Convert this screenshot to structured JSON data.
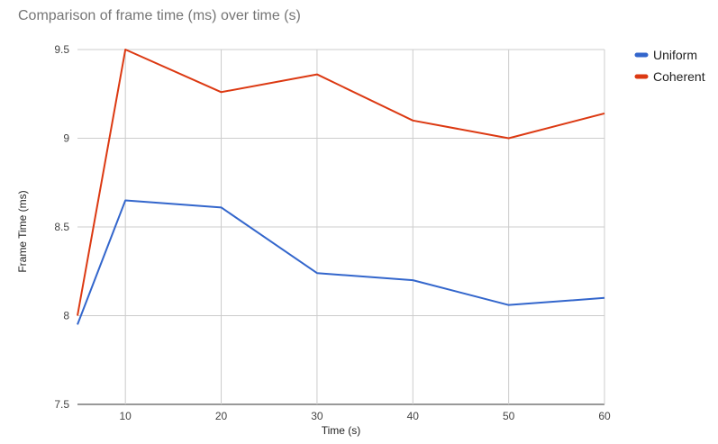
{
  "chart_data": {
    "type": "line",
    "title": "Comparison of frame time (ms) over time (s)",
    "xlabel": "Time (s)",
    "ylabel": "Frame Time (ms)",
    "xlim": [
      5,
      60
    ],
    "ylim": [
      7.5,
      9.5
    ],
    "x_ticks": [
      10,
      20,
      30,
      40,
      50,
      60
    ],
    "y_ticks": [
      7.5,
      8,
      8.5,
      9,
      9.5
    ],
    "y_tick_labels": [
      "7.5",
      "8",
      "8.5",
      "9",
      "9.5"
    ],
    "grid": true,
    "legend_position": "right",
    "x": [
      5,
      10,
      20,
      30,
      40,
      50,
      60
    ],
    "series": [
      {
        "name": "Uniform",
        "color": "#3366cc",
        "values": [
          7.95,
          8.65,
          8.61,
          8.24,
          8.2,
          8.06,
          8.1
        ]
      },
      {
        "name": "Coherent",
        "color": "#dc3912",
        "values": [
          8.0,
          9.5,
          9.26,
          9.36,
          9.1,
          9.0,
          9.14
        ]
      }
    ]
  }
}
